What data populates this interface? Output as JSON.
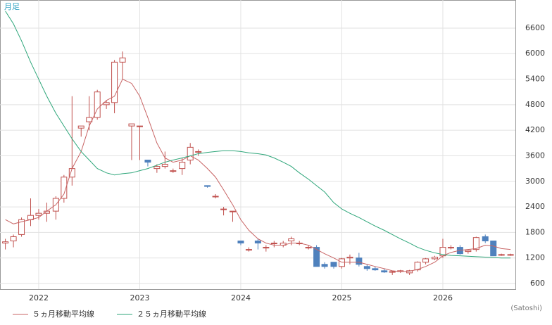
{
  "chart_data": {
    "type": "candlestick",
    "label": "月足",
    "unit_note": "(Satoshi)",
    "x": [
      2021.67,
      2021.75,
      2021.83,
      2021.92,
      2022.0,
      2022.08,
      2022.17,
      2022.25,
      2022.33,
      2022.42,
      2022.5,
      2022.58,
      2022.67,
      2022.75,
      2022.83,
      2022.92,
      2023.0,
      2023.08,
      2023.17,
      2023.25,
      2023.33,
      2023.42,
      2023.5,
      2023.58,
      2023.67,
      2023.75,
      2023.83,
      2023.92,
      2024.0,
      2024.08,
      2024.17,
      2024.25,
      2024.33,
      2024.42,
      2024.5,
      2024.58,
      2024.67,
      2024.75,
      2024.83,
      2024.92,
      2025.0,
      2025.08,
      2025.17,
      2025.25,
      2025.33,
      2025.42,
      2025.5,
      2025.58,
      2025.67,
      2025.75,
      2025.83,
      2025.92,
      2026.0,
      2026.08,
      2026.17,
      2026.25,
      2026.33,
      2026.42,
      2026.5,
      2026.58,
      2026.67
    ],
    "open": [
      1550,
      1600,
      1750,
      2100,
      2200,
      2250,
      2300,
      2600,
      3100,
      4250,
      4400,
      4500,
      4800,
      4850,
      5800,
      4300,
      4300,
      3500,
      3300,
      3350,
      3250,
      3300,
      3500,
      3700,
      2900,
      2650,
      2350,
      2300,
      1600,
      1400,
      1600,
      1450,
      1550,
      1500,
      1600,
      1550,
      1450,
      1450,
      1050,
      1100,
      1000,
      1200,
      1200,
      1000,
      950,
      900,
      870,
      880,
      850,
      920,
      1100,
      1180,
      1250,
      1450,
      1450,
      1350,
      1400,
      1700,
      1600,
      1280,
      1280
    ],
    "high": [
      1650,
      1750,
      2150,
      2600,
      2350,
      2500,
      2650,
      3150,
      5000,
      4300,
      5000,
      5150,
      4900,
      5850,
      6050,
      4350,
      4300,
      3500,
      3400,
      3700,
      3300,
      3550,
      3900,
      3750,
      2900,
      2700,
      2400,
      2300,
      1600,
      1450,
      1650,
      1500,
      1600,
      1600,
      1700,
      1600,
      1500,
      1500,
      1100,
      1100,
      1200,
      1280,
      1320,
      1050,
      1000,
      950,
      900,
      920,
      920,
      1120,
      1200,
      1250,
      1650,
      1500,
      1500,
      1400,
      1700,
      1750,
      1600,
      1300,
      1300
    ],
    "low": [
      1400,
      1450,
      1700,
      1950,
      2100,
      2050,
      2100,
      2500,
      2900,
      4050,
      4200,
      4450,
      4700,
      4600,
      5400,
      3500,
      3500,
      3350,
      3200,
      3300,
      3200,
      3150,
      3400,
      3600,
      2850,
      2600,
      2200,
      2050,
      1500,
      1350,
      1400,
      1350,
      1450,
      1450,
      1500,
      1500,
      1400,
      1000,
      950,
      950,
      950,
      1050,
      1000,
      900,
      900,
      850,
      800,
      850,
      800,
      880,
      1050,
      1150,
      1200,
      1400,
      1280,
      1300,
      1350,
      1550,
      1250,
      1250,
      1250
    ],
    "close": [
      1580,
      1700,
      2100,
      2200,
      2250,
      2300,
      2600,
      3100,
      3300,
      4300,
      4500,
      5100,
      4850,
      5800,
      5900,
      4350,
      4300,
      3450,
      3350,
      3400,
      3250,
      3450,
      3800,
      3700,
      2880,
      2650,
      2350,
      2300,
      1550,
      1400,
      1550,
      1450,
      1550,
      1550,
      1650,
      1550,
      1450,
      1000,
      1000,
      1000,
      1180,
      1220,
      1050,
      950,
      920,
      870,
      880,
      900,
      900,
      1100,
      1180,
      1220,
      1450,
      1450,
      1300,
      1380,
      1680,
      1600,
      1250,
      1280,
      1280
    ],
    "up_color": "#c0504d",
    "down_color": "#4f81bd",
    "series": [
      {
        "name": "５ヵ月移動平均線",
        "color": "#c86464",
        "values": [
          2100,
          2000,
          2050,
          2100,
          2150,
          2300,
          2450,
          2700,
          3300,
          3700,
          4300,
          4700,
          4900,
          5000,
          5400,
          5300,
          5000,
          4500,
          3900,
          3550,
          3450,
          3500,
          3600,
          3500,
          3300,
          3100,
          2800,
          2450,
          2100,
          1850,
          1650,
          1550,
          1500,
          1500,
          1550,
          1550,
          1500,
          1400,
          1300,
          1200,
          1100,
          1100,
          1100,
          1050,
          1000,
          950,
          900,
          880,
          890,
          930,
          1000,
          1100,
          1250,
          1330,
          1380,
          1400,
          1420,
          1500,
          1480,
          1420,
          1400
        ]
      },
      {
        "name": "２５ヵ月移動平均線",
        "color": "#2ea67a",
        "values": [
          7000,
          6700,
          6300,
          5800,
          5400,
          5000,
          4600,
          4300,
          4000,
          3700,
          3500,
          3300,
          3200,
          3150,
          3180,
          3200,
          3250,
          3300,
          3380,
          3450,
          3500,
          3550,
          3600,
          3650,
          3680,
          3700,
          3720,
          3720,
          3700,
          3670,
          3650,
          3620,
          3550,
          3450,
          3350,
          3200,
          3050,
          2900,
          2750,
          2500,
          2350,
          2250,
          2150,
          2050,
          1950,
          1850,
          1750,
          1650,
          1550,
          1450,
          1380,
          1320,
          1280,
          1260,
          1250,
          1240,
          1230,
          1220,
          1210,
          1200,
          1200
        ]
      }
    ],
    "xlim": [
      2021.617,
      2026.718
    ],
    "xticks": [
      2022,
      2023,
      2024,
      2025,
      2026
    ],
    "ylim": [
      468,
      7260
    ],
    "yticks": [
      600,
      1200,
      1800,
      2400,
      3000,
      3600,
      4200,
      4800,
      5400,
      6000,
      6600
    ],
    "grid": true
  }
}
